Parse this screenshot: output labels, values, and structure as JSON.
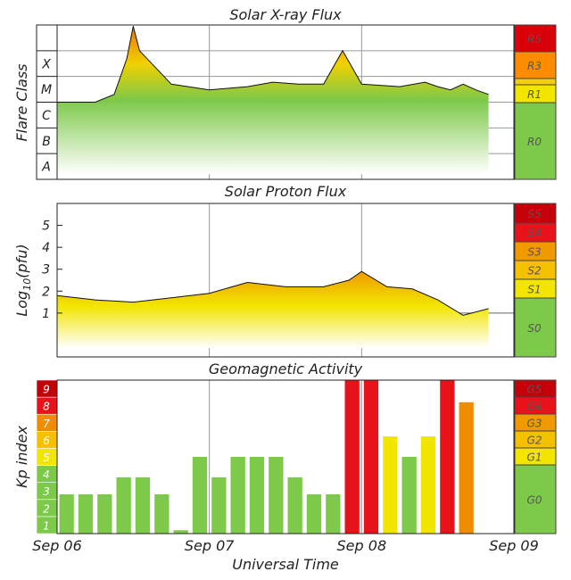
{
  "chart_data": [
    {
      "type": "area",
      "title": "Solar X-ray Flux",
      "ylabel": "Flare Class",
      "y_classes": [
        "A",
        "B",
        "C",
        "M",
        "X"
      ],
      "x": [
        "2017-09-06T00:00",
        "2017-09-06T03:00",
        "2017-09-06T06:00",
        "2017-09-06T09:00",
        "2017-09-06T11:00",
        "2017-09-06T12:00",
        "2017-09-06T13:00",
        "2017-09-06T18:00",
        "2017-09-07T00:00",
        "2017-09-07T06:00",
        "2017-09-07T10:00",
        "2017-09-07T14:00",
        "2017-09-07T18:00",
        "2017-09-07T21:00",
        "2017-09-08T00:00",
        "2017-09-08T06:00",
        "2017-09-08T10:00",
        "2017-09-08T12:00",
        "2017-09-08T14:00",
        "2017-09-08T16:00",
        "2017-09-08T18:00",
        "2017-09-08T20:00"
      ],
      "series": [
        {
          "values": [
            "C1",
            "C1",
            "C1",
            "C2",
            "M5",
            "X9",
            "X1",
            "C5",
            "C3",
            "C4",
            "C6",
            "C5",
            "C5",
            "X1",
            "C5",
            "C4",
            "C6",
            "C4",
            "C3",
            "C5",
            "C3",
            "C2"
          ]
        }
      ],
      "scale_labels": [
        "R5",
        "R3",
        "R1",
        "R0"
      ],
      "scale_colors": [
        "#d9000a",
        "#ff8c00",
        "#f2e600",
        "#7dc94a"
      ]
    },
    {
      "type": "area",
      "title": "Solar Proton Flux",
      "ylabel": "Log10(pfu)",
      "ylabel_main": "Log",
      "ylabel_sub": "10",
      "ylabel_tail": "(pfu)",
      "yticks": [
        "1",
        "2",
        "3",
        "4",
        "5"
      ],
      "ylim": [
        -1,
        6
      ],
      "x": [
        "2017-09-06T00:00",
        "2017-09-06T06:00",
        "2017-09-06T12:00",
        "2017-09-06T18:00",
        "2017-09-07T00:00",
        "2017-09-07T06:00",
        "2017-09-07T12:00",
        "2017-09-07T18:00",
        "2017-09-07T22:00",
        "2017-09-08T00:00",
        "2017-09-08T04:00",
        "2017-09-08T08:00",
        "2017-09-08T12:00",
        "2017-09-08T16:00",
        "2017-09-08T20:00"
      ],
      "series": [
        {
          "values": [
            1.8,
            1.6,
            1.5,
            1.7,
            1.9,
            2.4,
            2.2,
            2.2,
            2.5,
            2.9,
            2.2,
            2.1,
            1.6,
            0.9,
            1.2
          ]
        }
      ],
      "scale_labels": [
        "S5",
        "S4",
        "S3",
        "S2",
        "S1",
        "S0"
      ],
      "scale_colors": [
        "#c40008",
        "#e8131a",
        "#f09a00",
        "#f5c000",
        "#f2e600",
        "#7dc94a"
      ]
    },
    {
      "type": "bar",
      "title": "Geomagnetic Activity",
      "ylabel": "Kp index",
      "xlabel": "Universal Time",
      "kp_labels": [
        "1",
        "2",
        "3",
        "4",
        "5",
        "6",
        "7",
        "8",
        "9"
      ],
      "kp_colors": [
        "#7dc94a",
        "#7dc94a",
        "#7dc94a",
        "#7dc94a",
        "#f2e600",
        "#f5c000",
        "#f08c00",
        "#e8131a",
        "#c40008"
      ],
      "x": [
        "2017-09-06T00:00",
        "2017-09-06T03:00",
        "2017-09-06T06:00",
        "2017-09-06T09:00",
        "2017-09-06T12:00",
        "2017-09-06T15:00",
        "2017-09-06T18:00",
        "2017-09-06T21:00",
        "2017-09-07T00:00",
        "2017-09-07T03:00",
        "2017-09-07T06:00",
        "2017-09-07T09:00",
        "2017-09-07T12:00",
        "2017-09-07T15:00",
        "2017-09-07T18:00",
        "2017-09-07T21:00",
        "2017-09-08T00:00",
        "2017-09-08T03:00",
        "2017-09-08T06:00",
        "2017-09-08T09:00",
        "2017-09-08T12:00",
        "2017-09-08T15:00",
        "2017-09-08T18:00"
      ],
      "values": [
        2.3,
        2.3,
        2.3,
        3.3,
        3.3,
        2.3,
        0.2,
        4.5,
        3.3,
        4.5,
        4.5,
        4.5,
        3.3,
        2.3,
        2.3,
        9,
        9,
        5.7,
        4.5,
        5.7,
        9,
        7.7,
        null
      ],
      "xticks": [
        "Sep 06",
        "Sep 07",
        "Sep 08",
        "Sep 09"
      ],
      "ylim": [
        0,
        9
      ],
      "scale_labels": [
        "G5",
        "G4",
        "G3",
        "G2",
        "G1",
        "G0"
      ],
      "scale_colors": [
        "#c40008",
        "#e8131a",
        "#f09a00",
        "#f5c000",
        "#f2e600",
        "#7dc94a"
      ]
    }
  ]
}
